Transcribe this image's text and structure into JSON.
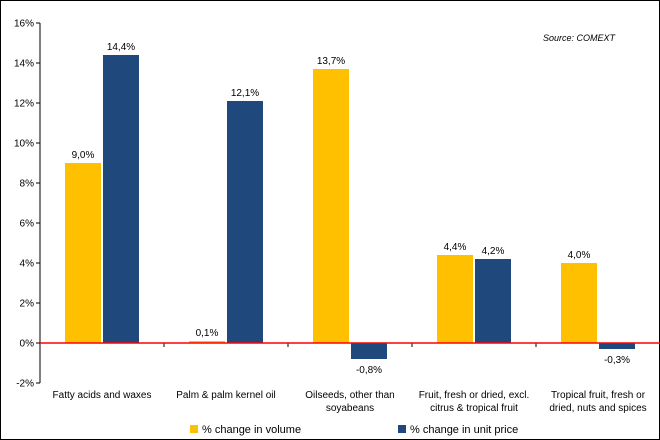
{
  "chart_data": {
    "type": "bar",
    "title": "",
    "xlabel": "",
    "ylabel": "",
    "source": "Source: COMEXT",
    "categories": [
      [
        "Fatty acids and waxes"
      ],
      [
        "Palm & palm kernel oil"
      ],
      [
        "Oilseeds, other than",
        "soyabeans"
      ],
      [
        "Fruit, fresh or dried, excl.",
        "citrus & tropical fruit"
      ],
      [
        "Tropical fruit, fresh or",
        "dried, nuts and spices"
      ]
    ],
    "series": [
      {
        "name": "% change in volume",
        "color": "#FFC000",
        "values": [
          9.0,
          0.1,
          13.7,
          4.4,
          4.0
        ],
        "labels": [
          "9,0%",
          "0,1%",
          "13,7%",
          "4,4%",
          "4,0%"
        ]
      },
      {
        "name": "% change in unit price",
        "color": "#1F497D",
        "values": [
          14.4,
          12.1,
          -0.8,
          4.2,
          -0.3
        ],
        "labels": [
          "14,4%",
          "12,1%",
          "-0,8%",
          "4,2%",
          "-0,3%"
        ]
      }
    ],
    "ylim": [
      -2,
      16
    ],
    "yticks": [
      -2,
      0,
      2,
      4,
      6,
      8,
      10,
      12,
      14,
      16
    ],
    "ytick_labels": [
      "-2%",
      "0%",
      "2%",
      "4%",
      "6%",
      "8%",
      "10%",
      "12%",
      "14%",
      "16%"
    ],
    "zero_line_color": "#FF0000",
    "grid": false,
    "legend_position": "bottom"
  }
}
